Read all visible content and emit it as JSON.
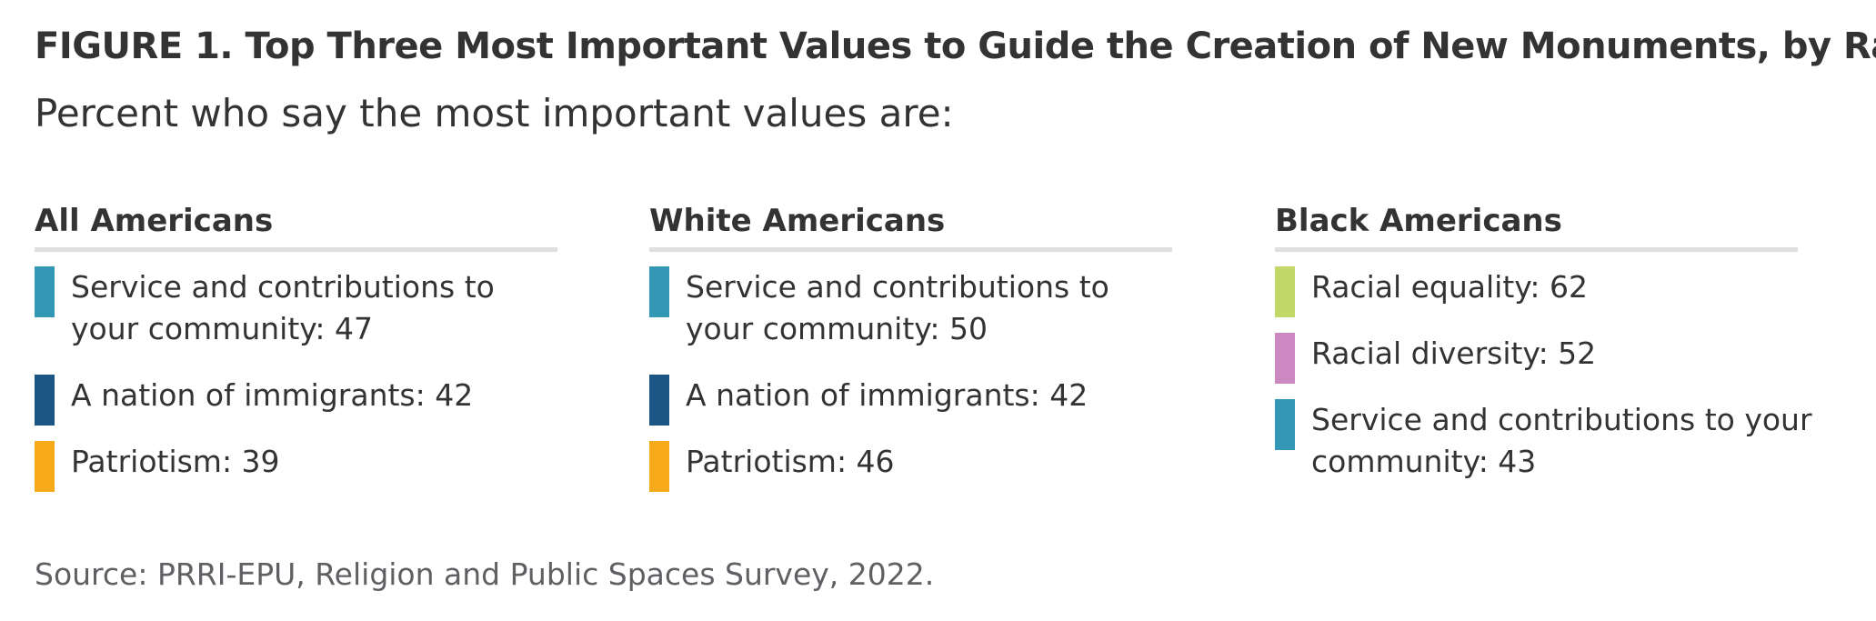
{
  "title": "FIGURE 1. Top Three Most Important Values to Guide the Creation of New Monuments, by Race",
  "subtitle": "Percent who say the most important values are:",
  "source": "Source: PRRI-EPU, Religion and Public Spaces Survey, 2022.",
  "chart_data": {
    "type": "table",
    "title": "FIGURE 1. Top Three Most Important Values to Guide the Creation of New Monuments, by Race",
    "subtitle": "Percent who say the most important values are:",
    "colors": {
      "Service and contributions to your community": "#3497b5",
      "A nation of immigrants": "#1c5686",
      "Patriotism": "#f6a919",
      "Racial equality": "#c2d96a",
      "Racial diversity": "#cc88c0"
    },
    "groups": [
      {
        "name": "All Americans",
        "items": [
          {
            "label": "Service and contributions to your community",
            "value": 47
          },
          {
            "label": "A nation of immigrants",
            "value": 42
          },
          {
            "label": "Patriotism",
            "value": 39
          }
        ]
      },
      {
        "name": "White Americans",
        "items": [
          {
            "label": "Service and contributions to your community",
            "value": 50
          },
          {
            "label": "A nation of immigrants",
            "value": 42
          },
          {
            "label": "Patriotism",
            "value": 46
          }
        ]
      },
      {
        "name": "Black Americans",
        "items": [
          {
            "label": "Racial equality",
            "value": 62
          },
          {
            "label": "Racial diversity",
            "value": 52
          },
          {
            "label": "Service and contributions to your community",
            "value": 43
          }
        ]
      }
    ]
  }
}
